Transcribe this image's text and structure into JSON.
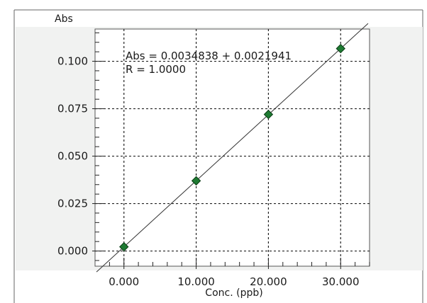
{
  "chart_data": {
    "type": "scatter",
    "ylabel": "Abs",
    "xlabel": "Conc. (ppb)",
    "xlim": [
      -4,
      34
    ],
    "ylim": [
      -0.008,
      0.117
    ],
    "x_ticks": [
      0,
      10,
      20,
      30
    ],
    "x_tick_labels": [
      "0.000",
      "10.000",
      "20.000",
      "30.000"
    ],
    "y_ticks": [
      0.0,
      0.025,
      0.05,
      0.075,
      0.1
    ],
    "y_tick_labels": [
      "0.000",
      "0.025",
      "0.050",
      "0.075",
      "0.100"
    ],
    "grid": true,
    "series": [
      {
        "x": [
          0,
          10,
          20,
          30
        ],
        "y": [
          0.0022,
          0.037,
          0.072,
          0.1067
        ],
        "marker": "diamond",
        "color": "#1e7a32"
      }
    ],
    "fit_line": {
      "slope": 0.0034838,
      "intercept": 0.0021941,
      "color": "#333333"
    },
    "annotations": [
      "Abs = 0.0034838 + 0.0021941",
      "R = 1.0000"
    ]
  },
  "colors": {
    "plot_background": "#f1f2f1",
    "grid": "#222222",
    "frame": "#555555"
  }
}
